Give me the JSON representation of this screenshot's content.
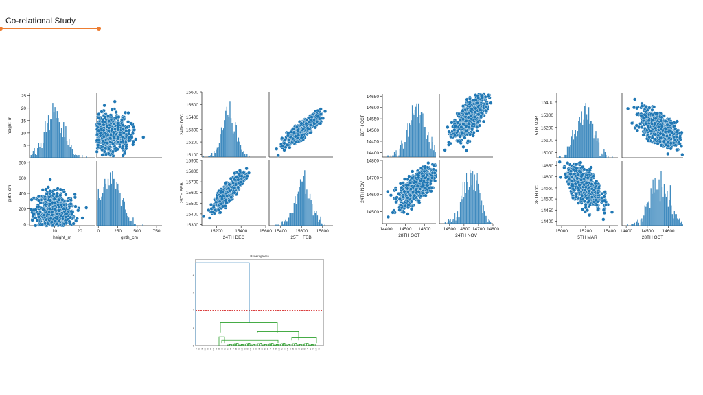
{
  "slide": {
    "title": "Co-relational Study",
    "accent_color": "#ed7d31"
  },
  "chart_data": [
    {
      "type": "scatter",
      "variables": [
        "height_m",
        "girth_cm"
      ],
      "ranges": {
        "height_m": [
          0,
          26
        ],
        "girth_cm": [
          -20,
          820
        ]
      },
      "ticks": {
        "height_m": [
          10,
          20
        ],
        "girth_cm": [
          0,
          250,
          500,
          750
        ]
      },
      "yticks": {
        "height_m": [
          5,
          10,
          15,
          20,
          25
        ],
        "girth_cm": [
          0,
          200,
          400,
          600,
          800
        ]
      },
      "xtick_labels": {
        "height_m": [
          "10",
          "20"
        ],
        "girth_cm": [
          "0",
          "250",
          "500",
          "750"
        ]
      },
      "ytick_labels": {
        "height_m": [
          "5",
          "10",
          "15",
          "20",
          "25"
        ],
        "girth_cm": [
          "0",
          "200",
          "400",
          "600",
          "800"
        ]
      },
      "correlation": -0.1,
      "center": {
        "height_m": 10,
        "girth_cm": 150
      },
      "spread": {
        "height_m": 4,
        "girth_cm": 130
      },
      "color": "#1f77b4"
    },
    {
      "type": "scatter",
      "variables": [
        "24TH DEC",
        "25TH FEB"
      ],
      "ranges": {
        "24TH DEC": [
          15080,
          15600
        ],
        "25TH FEB": [
          15290,
          15900
        ]
      },
      "ticks": {
        "24TH DEC": [
          15200,
          15400,
          15600
        ],
        "25TH FEB": [
          15400,
          15600,
          15800
        ]
      },
      "yticks": {
        "24TH DEC": [
          15100,
          15200,
          15300,
          15400,
          15500,
          15600
        ],
        "25TH FEB": [
          15300,
          15400,
          15500,
          15600,
          15700,
          15800,
          15900
        ]
      },
      "xtick_labels": {
        "24TH DEC": [
          "15200",
          "15400",
          "15600"
        ],
        "25TH FEB": [
          "15400",
          "15600",
          "15800"
        ]
      },
      "ytick_labels": {
        "24TH DEC": [
          "15100",
          "15200",
          "15300",
          "15400",
          "15500",
          "15600"
        ],
        "25TH FEB": [
          "15300",
          "15400",
          "15500",
          "15600",
          "15700",
          "15800",
          "15900"
        ]
      },
      "correlation": 0.85,
      "center": {
        "24TH DEC": 15300,
        "25TH FEB": 15610
      },
      "spread": {
        "24TH DEC": 55,
        "25TH FEB": 75
      },
      "color": "#1f77b4"
    },
    {
      "type": "scatter",
      "variables": [
        "28TH OCT",
        "24TH NOV"
      ],
      "ranges": {
        "28TH OCT": [
          14380,
          14660
        ],
        "24TH NOV": [
          14430,
          14800
        ]
      },
      "ticks": {
        "28TH OCT": [
          14400,
          14500,
          14600
        ],
        "24TH NOV": [
          14500,
          14600,
          14700,
          14800
        ]
      },
      "yticks": {
        "28TH OCT": [
          14400,
          14450,
          14500,
          14550,
          14600,
          14650
        ],
        "24TH NOV": [
          14500,
          14600,
          14700,
          14800
        ]
      },
      "xtick_labels": {
        "28TH OCT": [
          "14400",
          "14500",
          "14600"
        ],
        "24TH NOV": [
          "14500",
          "14600",
          "14700",
          "14800"
        ]
      },
      "ytick_labels": {
        "28TH OCT": [
          "14400",
          "14450",
          "14500",
          "14550",
          "14600",
          "14650"
        ],
        "24TH NOV": [
          "14500",
          "14600",
          "14700",
          "14800"
        ]
      },
      "correlation": 0.65,
      "center": {
        "28TH OCT": 14560,
        "24TH NOV": 14650
      },
      "spread": {
        "28TH OCT": 45,
        "24TH NOV": 55
      },
      "color": "#1f77b4"
    },
    {
      "type": "scatter",
      "variables": [
        "5TH MAR",
        "28TH OCT"
      ],
      "ranges": {
        "5TH MAR": [
          14960,
          15470
        ],
        "28TH OCT": [
          14380,
          14670
        ]
      },
      "ticks": {
        "5TH MAR": [
          15000,
          15200,
          15400
        ],
        "28TH OCT": [
          14400,
          14500,
          14600
        ]
      },
      "yticks": {
        "5TH MAR": [
          15000,
          15100,
          15200,
          15300,
          15400
        ],
        "28TH OCT": [
          14400,
          14450,
          14500,
          14550,
          14600,
          14650
        ]
      },
      "xtick_labels": {
        "5TH MAR": [
          "15000",
          "15200",
          "15400"
        ],
        "28TH OCT": [
          "14400",
          "14500",
          "14600"
        ]
      },
      "ytick_labels": {
        "5TH MAR": [
          "15000",
          "15100",
          "15200",
          "15300",
          "15400"
        ],
        "28TH OCT": [
          "14400",
          "14450",
          "14500",
          "14550",
          "14600",
          "14650"
        ]
      },
      "correlation": -0.55,
      "center": {
        "5TH MAR": 15190,
        "28TH OCT": 14560
      },
      "spread": {
        "5TH MAR": 70,
        "28TH OCT": 45
      },
      "color": "#1f77b4"
    },
    {
      "type": "dendrogram",
      "title": "Dendrograms",
      "ylim": [
        0,
        4.9
      ],
      "yticks": [
        0,
        1,
        2,
        3,
        4
      ],
      "threshold": 2,
      "threshold_color": "#d62728",
      "top_link_color": "#1f77b4",
      "cluster_color": "#2ca02c",
      "top_merge": {
        "left": 0.05,
        "right": 1.3,
        "height": 4.7
      }
    }
  ]
}
